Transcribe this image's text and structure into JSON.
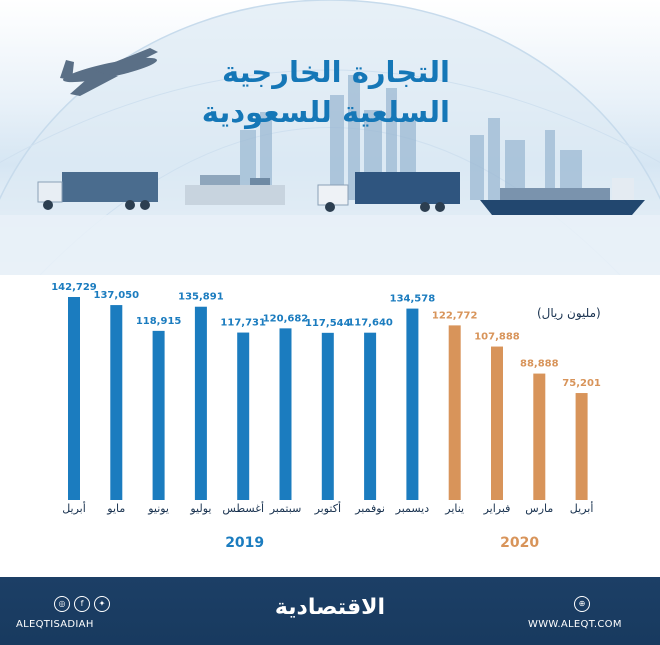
{
  "header": {
    "title_line1": "التجارة الخارجية",
    "title_line2": "السلعية للسعودية"
  },
  "chart_data": {
    "type": "bar",
    "title": "التجارة الخارجية السلعية للسعودية",
    "unit_label": "(مليون ريال)",
    "categories": [
      "أبريل",
      "مايو",
      "يونيو",
      "يوليو",
      "أغسطس",
      "سبتمبر",
      "أكتوبر",
      "نوفمبر",
      "ديسمبر",
      "يناير",
      "فبراير",
      "مارس",
      "أبريل"
    ],
    "values": [
      142729,
      137050,
      118915,
      135891,
      117731,
      120682,
      117544,
      117640,
      134578,
      122772,
      107888,
      88888,
      75201
    ],
    "value_labels": [
      "142,729",
      "137,050",
      "118,915",
      "135,891",
      "117,731",
      "120,682",
      "117,544",
      "117,640",
      "134,578",
      "122,772",
      "107,888",
      "88,888",
      "75,201"
    ],
    "year_groups": [
      {
        "label": "2019",
        "count": 9,
        "color": "#1b7cbf"
      },
      {
        "label": "2020",
        "count": 4,
        "color": "#d8945a"
      }
    ],
    "ylim": [
      0,
      150000
    ],
    "grid": false,
    "legend": "none"
  },
  "footer": {
    "logo_text": "الاقتصادية",
    "handle": "ALEQTISADIAH",
    "website": "WWW.ALEQT.COM",
    "social_icons": [
      "instagram-icon",
      "facebook-icon",
      "twitter-icon"
    ],
    "site_icon": "globe-icon"
  },
  "colors": {
    "title": "#1577b7",
    "bar_2019": "#1b7cbf",
    "bar_2020": "#d8945a",
    "footer_bg": "#1c3f66"
  }
}
